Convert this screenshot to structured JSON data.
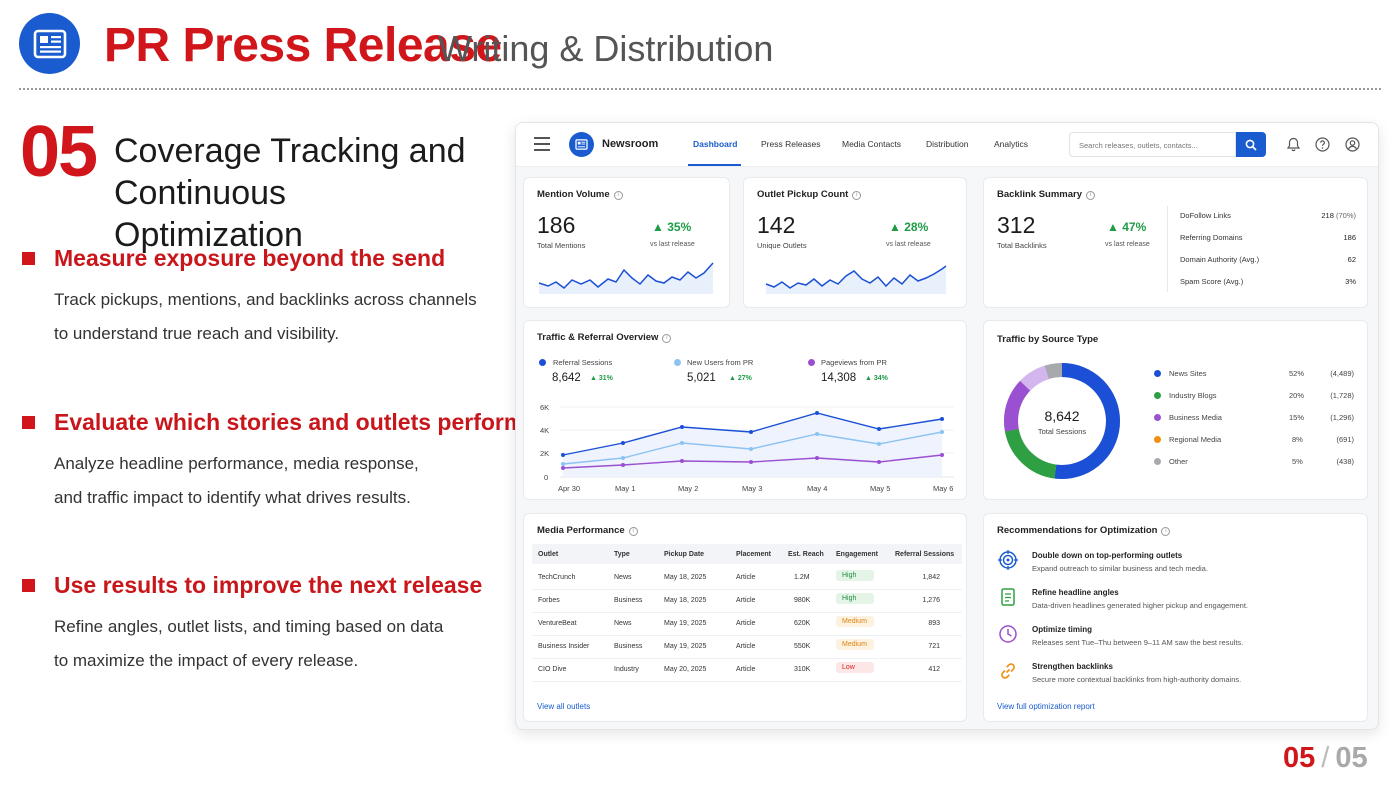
{
  "header": {
    "title": "PR Press Release",
    "subtitle": "Writing & Distribution"
  },
  "section": {
    "number": "05",
    "title_line1": "Coverage Tracking and",
    "title_line2": "Continuous Optimization"
  },
  "points": [
    {
      "heading": "Measure exposure beyond the send",
      "line1": "Track pickups, mentions, and backlinks across channels",
      "line2": "to understand true reach and visibility."
    },
    {
      "heading": "Evaluate which stories and outlets perform best",
      "line1": "Analyze headline performance, media response,",
      "line2": "and traffic impact to identify what drives results."
    },
    {
      "heading": "Use results to improve the next release",
      "line1": "Refine angles, outlet lists, and timing based on data",
      "line2": "to maximize the impact of every release."
    }
  ],
  "dashboard": {
    "brand": "Newsroom",
    "nav": [
      "Dashboard",
      "Press Releases",
      "Media Contacts",
      "Distribution",
      "Analytics"
    ],
    "search_placeholder": "Search releases, outlets, contacts...",
    "mention": {
      "title": "Mention Volume",
      "value": "186",
      "label": "Total Mentions",
      "delta": "35%",
      "delta_label": "vs last release"
    },
    "pickup": {
      "title": "Outlet Pickup Count",
      "value": "142",
      "label": "Unique Outlets",
      "delta": "28%",
      "delta_label": "vs last release"
    },
    "backlink": {
      "title": "Backlink Summary",
      "value": "312",
      "label": "Total Backlinks",
      "delta": "47%",
      "delta_label": "vs last release",
      "rows": [
        {
          "label": "DoFollow Links",
          "value": "218",
          "extra": "(70%)"
        },
        {
          "label": "Referring Domains",
          "value": "186",
          "extra": ""
        },
        {
          "label": "Domain Authority (Avg.)",
          "value": "62",
          "extra": ""
        },
        {
          "label": "Spam Score (Avg.)",
          "value": "3%",
          "extra": ""
        }
      ]
    },
    "traffic": {
      "title": "Traffic & Referral Overview",
      "series": [
        {
          "name": "Referral Sessions",
          "value": "8,642",
          "delta": "31%",
          "color": "#1a4fd6"
        },
        {
          "name": "New Users from PR",
          "value": "5,021",
          "delta": "27%",
          "color": "#8cc3f2"
        },
        {
          "name": "Pageviews from PR",
          "value": "14,308",
          "delta": "34%",
          "color": "#9b4fd1"
        }
      ],
      "y_ticks": [
        "6K",
        "4K",
        "2K",
        "0"
      ],
      "x_ticks": [
        "Apr 30",
        "May 1",
        "May 2",
        "May 3",
        "May 4",
        "May 5",
        "May 6"
      ]
    },
    "source": {
      "title": "Traffic by Source Type",
      "center_value": "8,642",
      "center_label": "Total Sessions",
      "items": [
        {
          "name": "News Sites",
          "pct": "52%",
          "count": "(4,489)",
          "color": "#1a4fd6"
        },
        {
          "name": "Industry Blogs",
          "pct": "20%",
          "count": "(1,728)",
          "color": "#2ea043"
        },
        {
          "name": "Business Media",
          "pct": "15%",
          "count": "(1,296)",
          "color": "#9b4fd1"
        },
        {
          "name": "Regional Media",
          "pct": "8%",
          "count": "(691)",
          "color": "#f0900e"
        },
        {
          "name": "Other",
          "pct": "5%",
          "count": "(438)",
          "color": "#a7a9ad"
        }
      ]
    },
    "media": {
      "title": "Media Performance",
      "columns": [
        "Outlet",
        "Type",
        "Pickup Date",
        "Placement",
        "Est. Reach",
        "Engagement",
        "Referral Sessions"
      ],
      "rows": [
        {
          "outlet": "TechCrunch",
          "type": "News",
          "date": "May 18, 2025",
          "placement": "Article",
          "reach": "1.2M",
          "engagement": "High",
          "sessions": "1,842"
        },
        {
          "outlet": "Forbes",
          "type": "Business",
          "date": "May 18, 2025",
          "placement": "Article",
          "reach": "980K",
          "engagement": "High",
          "sessions": "1,276"
        },
        {
          "outlet": "VentureBeat",
          "type": "News",
          "date": "May 19, 2025",
          "placement": "Article",
          "reach": "620K",
          "engagement": "Medium",
          "sessions": "893"
        },
        {
          "outlet": "Business Insider",
          "type": "Business",
          "date": "May 19, 2025",
          "placement": "Article",
          "reach": "550K",
          "engagement": "Medium",
          "sessions": "721"
        },
        {
          "outlet": "CIO Dive",
          "type": "Industry",
          "date": "May 20, 2025",
          "placement": "Article",
          "reach": "310K",
          "engagement": "Low",
          "sessions": "412"
        }
      ],
      "link": "View all outlets"
    },
    "recs": {
      "title": "Recommendations for Optimization",
      "items": [
        {
          "title": "Double down on top-performing outlets",
          "desc": "Expand outreach to similar business and tech media.",
          "icon": "target-icon"
        },
        {
          "title": "Refine headline angles",
          "desc": "Data-driven headlines generated higher pickup and engagement.",
          "icon": "document-icon"
        },
        {
          "title": "Optimize timing",
          "desc": "Releases sent Tue–Thu between 9–11 AM saw the best results.",
          "icon": "clock-icon"
        },
        {
          "title": "Strengthen backlinks",
          "desc": "Secure more contextual backlinks from high-authority domains.",
          "icon": "link-icon"
        }
      ],
      "link": "View full optimization report"
    }
  },
  "pagination": {
    "current": "05",
    "separator": "/",
    "total": "05"
  }
}
